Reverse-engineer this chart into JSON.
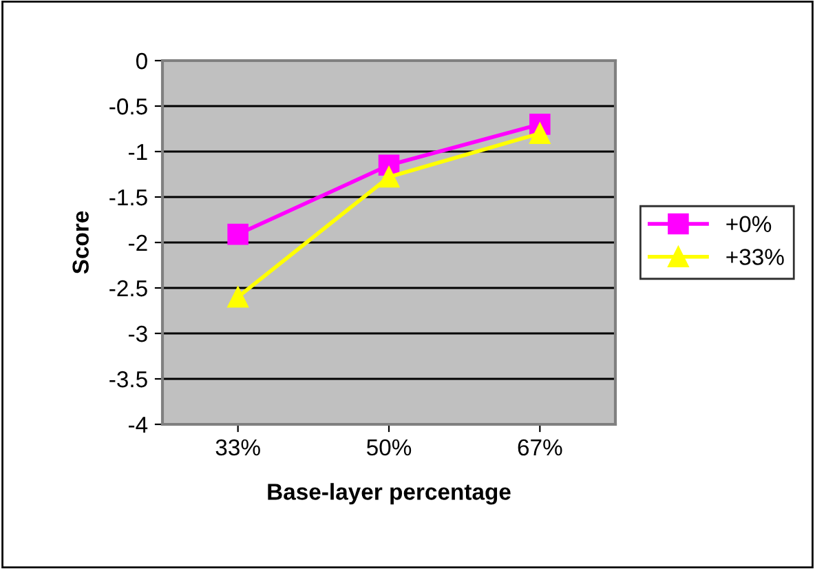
{
  "chart_data": {
    "type": "line",
    "xlabel": "Base-layer percentage",
    "ylabel": "Score",
    "categories": [
      "33%",
      "50%",
      "67%"
    ],
    "series": [
      {
        "name": "+0%",
        "color": "#ff00ff",
        "values": [
          -1.91,
          -1.15,
          -0.7
        ],
        "marker": "square"
      },
      {
        "name": "+33%",
        "color": "#ffff00",
        "values": [
          -2.6,
          -1.28,
          -0.8
        ],
        "marker": "triangle"
      }
    ],
    "ylim": [
      -4,
      0
    ],
    "yticks": [
      -4,
      -3.5,
      -3,
      -2.5,
      -2,
      -1.5,
      -1,
      -0.5,
      0
    ],
    "grid": "y",
    "legend": "right",
    "line_style": "solid"
  }
}
